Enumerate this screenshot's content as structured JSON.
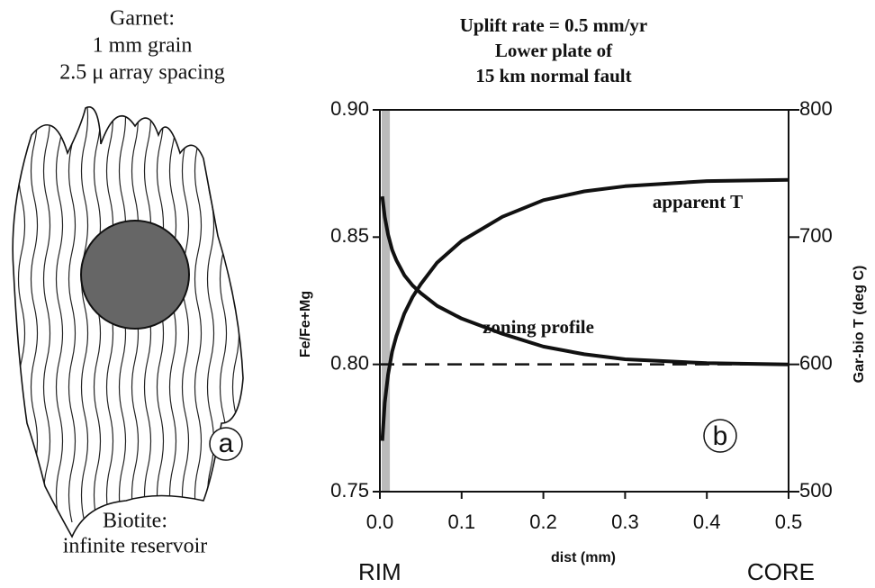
{
  "illustration": {
    "title_lines": [
      "Garnet:",
      "1 mm grain",
      "2.5 μ array spacing"
    ],
    "bottom_lines": [
      "Biotite:",
      "infinite reservoir"
    ],
    "panel_label": "a"
  },
  "chart_data": {
    "type": "line",
    "title_lines": [
      "Uplift rate = 0.5 mm/yr",
      "Lower plate of",
      "15 km normal fault"
    ],
    "x_label": "dist (mm)",
    "y_label": "Fe/Fe+Mg",
    "y2_label": "Gar-bio T (deg C)",
    "x": [
      0.003,
      0.006,
      0.01,
      0.015,
      0.02,
      0.03,
      0.04,
      0.05,
      0.07,
      0.1,
      0.15,
      0.2,
      0.25,
      0.3,
      0.4,
      0.5
    ],
    "series": [
      {
        "name": "zoning profile",
        "color": "#111111",
        "values": [
          0.866,
          0.858,
          0.851,
          0.845,
          0.841,
          0.835,
          0.831,
          0.828,
          0.823,
          0.818,
          0.812,
          0.807,
          0.804,
          0.802,
          0.8005,
          0.8
        ]
      },
      {
        "name": "apparent T",
        "color": "#111111",
        "axis": "y2",
        "values": [
          540,
          570,
          592,
          610,
          622,
          640,
          653,
          663,
          680,
          697,
          716,
          729,
          736,
          740,
          744,
          745
        ]
      }
    ],
    "reference_line": 0.8,
    "shaded_region": [
      0,
      0.01
    ],
    "panel_label": "b",
    "x_end_labels": [
      "RIM",
      "CORE"
    ],
    "xlim": [
      0,
      0.5
    ],
    "xticks": [
      {
        "value": 0,
        "label": "0.0"
      },
      0.1,
      0.2,
      0.3,
      0.4,
      0.5
    ],
    "ylim": [
      0.75,
      0.9
    ],
    "yticks": [
      0.75,
      {
        "value": 0.8,
        "label": "0.80"
      },
      0.85,
      {
        "value": 0.9,
        "label": "0.90"
      }
    ],
    "y2lim": [
      500,
      800
    ],
    "y2ticks": [
      500,
      600,
      700,
      800
    ]
  }
}
